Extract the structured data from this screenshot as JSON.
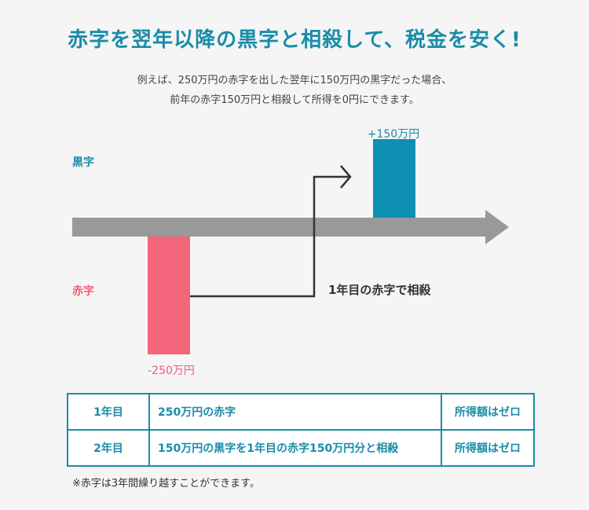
{
  "title": "赤字を翌年以降の黒字と相殺して、税金を安く!",
  "subtitle": [
    "例えば、250万円の赤字を出した翌年に150万円の黒字だった場合、",
    "前年の赤字150万円と相殺して所得を0円にできます。"
  ],
  "diagram": {
    "label_black": "黒字",
    "label_red": "赤字",
    "value_plus": "+150万円",
    "value_minus": "-250万円",
    "offset_label": "1年目の赤字で相殺",
    "colors": {
      "accent": "#1a8ca8",
      "red": "#f2657a",
      "blue_bar": "#0f8fb2",
      "arrow": "#999999"
    }
  },
  "chart_data": {
    "type": "bar",
    "series": [
      {
        "values": [
          -250,
          150
        ]
      }
    ]
  },
  "table": {
    "rows": [
      {
        "year": "1年目",
        "detail": "250万円の赤字",
        "result": "所得額はゼロ"
      },
      {
        "year": "2年目",
        "detail": "150万円の黒字を1年目の赤字150万円分と相殺",
        "result": "所得額はゼロ"
      }
    ]
  },
  "note": "※赤字は3年間繰り越すことができます。"
}
